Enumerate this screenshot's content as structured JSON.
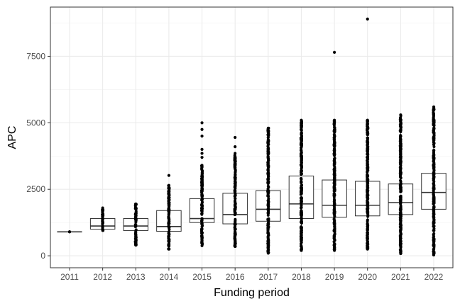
{
  "chart_data": {
    "type": "boxplot",
    "xlabel": "Funding period",
    "ylabel": "APC",
    "ylim": [
      -450,
      9350
    ],
    "y_ticks": [
      0,
      2500,
      5000,
      7500
    ],
    "y_tick_labels": [
      "0",
      "2500",
      "5000",
      "7500"
    ],
    "grid": true,
    "legend": "none",
    "categories": [
      "2011",
      "2012",
      "2013",
      "2014",
      "2015",
      "2016",
      "2017",
      "2018",
      "2019",
      "2020",
      "2021",
      "2022"
    ],
    "boxes": [
      {
        "category": "2011",
        "min": 900,
        "q1": 900,
        "median": 900,
        "q3": 900,
        "max": 900,
        "outliers": []
      },
      {
        "category": "2012",
        "min": 950,
        "q1": 1000,
        "median": 1120,
        "q3": 1400,
        "max": 1800,
        "outliers": []
      },
      {
        "category": "2013",
        "min": 400,
        "q1": 950,
        "median": 1120,
        "q3": 1400,
        "max": 1950,
        "outliers": []
      },
      {
        "category": "2014",
        "min": 250,
        "q1": 920,
        "median": 1100,
        "q3": 1700,
        "max": 2650,
        "outliers": [
          3020
        ]
      },
      {
        "category": "2015",
        "min": 380,
        "q1": 1250,
        "median": 1400,
        "q3": 2150,
        "max": 3400,
        "outliers": [
          3700,
          3850,
          4000,
          4500,
          4750,
          5000
        ]
      },
      {
        "category": "2016",
        "min": 350,
        "q1": 1200,
        "median": 1550,
        "q3": 2350,
        "max": 3850,
        "outliers": [
          4100,
          4450
        ]
      },
      {
        "category": "2017",
        "min": 100,
        "q1": 1300,
        "median": 1750,
        "q3": 2450,
        "max": 4800,
        "outliers": []
      },
      {
        "category": "2018",
        "min": 200,
        "q1": 1400,
        "median": 1950,
        "q3": 3000,
        "max": 5100,
        "outliers": []
      },
      {
        "category": "2019",
        "min": 200,
        "q1": 1450,
        "median": 1900,
        "q3": 2850,
        "max": 5100,
        "outliers": [
          7650
        ]
      },
      {
        "category": "2020",
        "min": 250,
        "q1": 1500,
        "median": 1900,
        "q3": 2800,
        "max": 5100,
        "outliers": [
          8900
        ]
      },
      {
        "category": "2021",
        "min": 80,
        "q1": 1550,
        "median": 2000,
        "q3": 2700,
        "max": 5300,
        "outliers": []
      },
      {
        "category": "2022",
        "min": 30,
        "q1": 1750,
        "median": 2380,
        "q3": 3100,
        "max": 5600,
        "outliers": []
      }
    ]
  }
}
